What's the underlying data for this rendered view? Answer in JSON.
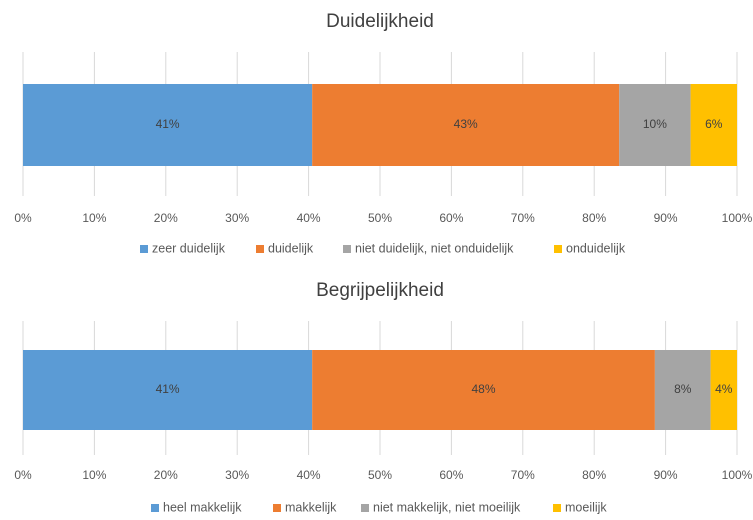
{
  "chart_data": [
    {
      "type": "bar",
      "stacked": true,
      "orientation": "horizontal",
      "title": "Duidelijkheid",
      "xlim": [
        0,
        100
      ],
      "ticks": [
        "0%",
        "10%",
        "20%",
        "30%",
        "40%",
        "50%",
        "60%",
        "70%",
        "80%",
        "90%",
        "100%"
      ],
      "grid": true,
      "legend_position": "bottom",
      "series": [
        {
          "name": "zeer duidelijk",
          "value": 40.5,
          "label": "41%",
          "color": "#5b9bd5"
        },
        {
          "name": "duidelijk",
          "value": 43.0,
          "label": "43%",
          "color": "#ed7d31"
        },
        {
          "name": "niet duidelijk, niet onduidelijk",
          "value": 10.0,
          "label": "10%",
          "color": "#a5a5a5"
        },
        {
          "name": "onduidelijk",
          "value": 6.5,
          "label": "6%",
          "color": "#ffc000"
        }
      ]
    },
    {
      "type": "bar",
      "stacked": true,
      "orientation": "horizontal",
      "title": "Begrijpelijkheid",
      "xlim": [
        0,
        100
      ],
      "ticks": [
        "0%",
        "10%",
        "20%",
        "30%",
        "40%",
        "50%",
        "60%",
        "70%",
        "80%",
        "90%",
        "100%"
      ],
      "grid": true,
      "legend_position": "bottom",
      "series": [
        {
          "name": "heel makkelijk",
          "value": 40.5,
          "label": "41%",
          "color": "#5b9bd5"
        },
        {
          "name": "makkelijk",
          "value": 48.0,
          "label": "48%",
          "color": "#ed7d31"
        },
        {
          "name": "niet makkelijk, niet moeilijk",
          "value": 7.8,
          "label": "8%",
          "color": "#a5a5a5"
        },
        {
          "name": "moeilijk",
          "value": 3.7,
          "label": "4%",
          "color": "#ffc000"
        }
      ]
    }
  ]
}
